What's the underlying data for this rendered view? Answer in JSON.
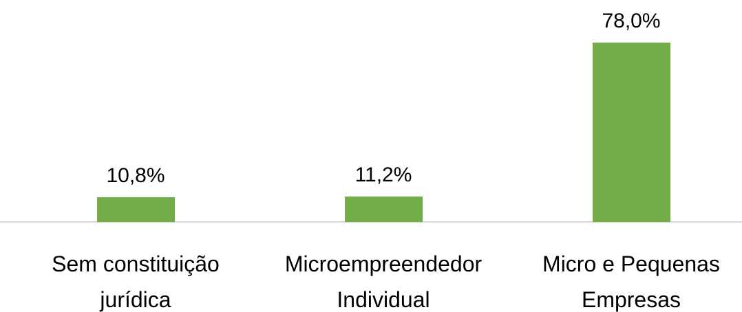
{
  "chart_data": {
    "type": "bar",
    "categories": [
      "Sem constituição jurídica",
      "Microempreendedor Individual",
      "Micro e Pequenas Empresas"
    ],
    "values": [
      10.8,
      11.2,
      78.0
    ],
    "value_labels": [
      "10,8%",
      "11,2%",
      "78,0%"
    ],
    "color": "#70ad47"
  }
}
